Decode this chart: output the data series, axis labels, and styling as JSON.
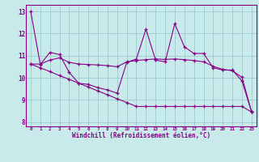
{
  "xlabel": "Windchill (Refroidissement éolien,°C)",
  "bg_color": "#c8eaea",
  "line_color": "#880088",
  "grid_color": "#99cccc",
  "xlim": [
    -0.5,
    23.5
  ],
  "ylim": [
    7.8,
    13.3
  ],
  "xticks": [
    0,
    1,
    2,
    3,
    4,
    5,
    6,
    7,
    8,
    9,
    10,
    11,
    12,
    13,
    14,
    15,
    16,
    17,
    18,
    19,
    20,
    21,
    22,
    23
  ],
  "yticks": [
    8,
    9,
    10,
    11,
    12,
    13
  ],
  "series1": [
    13.0,
    10.6,
    11.15,
    11.05,
    10.25,
    9.75,
    9.7,
    9.55,
    9.45,
    9.3,
    10.7,
    10.85,
    12.2,
    10.8,
    10.72,
    12.45,
    11.4,
    11.1,
    11.1,
    10.45,
    10.35,
    10.35,
    9.85,
    8.45
  ],
  "series2": [
    10.62,
    10.62,
    10.8,
    10.9,
    10.7,
    10.62,
    10.6,
    10.58,
    10.55,
    10.5,
    10.72,
    10.78,
    10.82,
    10.85,
    10.83,
    10.85,
    10.82,
    10.78,
    10.72,
    10.52,
    10.38,
    10.32,
    10.02,
    8.45
  ],
  "series3": [
    10.62,
    10.45,
    10.28,
    10.1,
    9.93,
    9.75,
    9.58,
    9.4,
    9.23,
    9.05,
    8.88,
    8.7,
    8.7,
    8.7,
    8.7,
    8.7,
    8.7,
    8.7,
    8.7,
    8.7,
    8.7,
    8.7,
    8.7,
    8.45
  ]
}
